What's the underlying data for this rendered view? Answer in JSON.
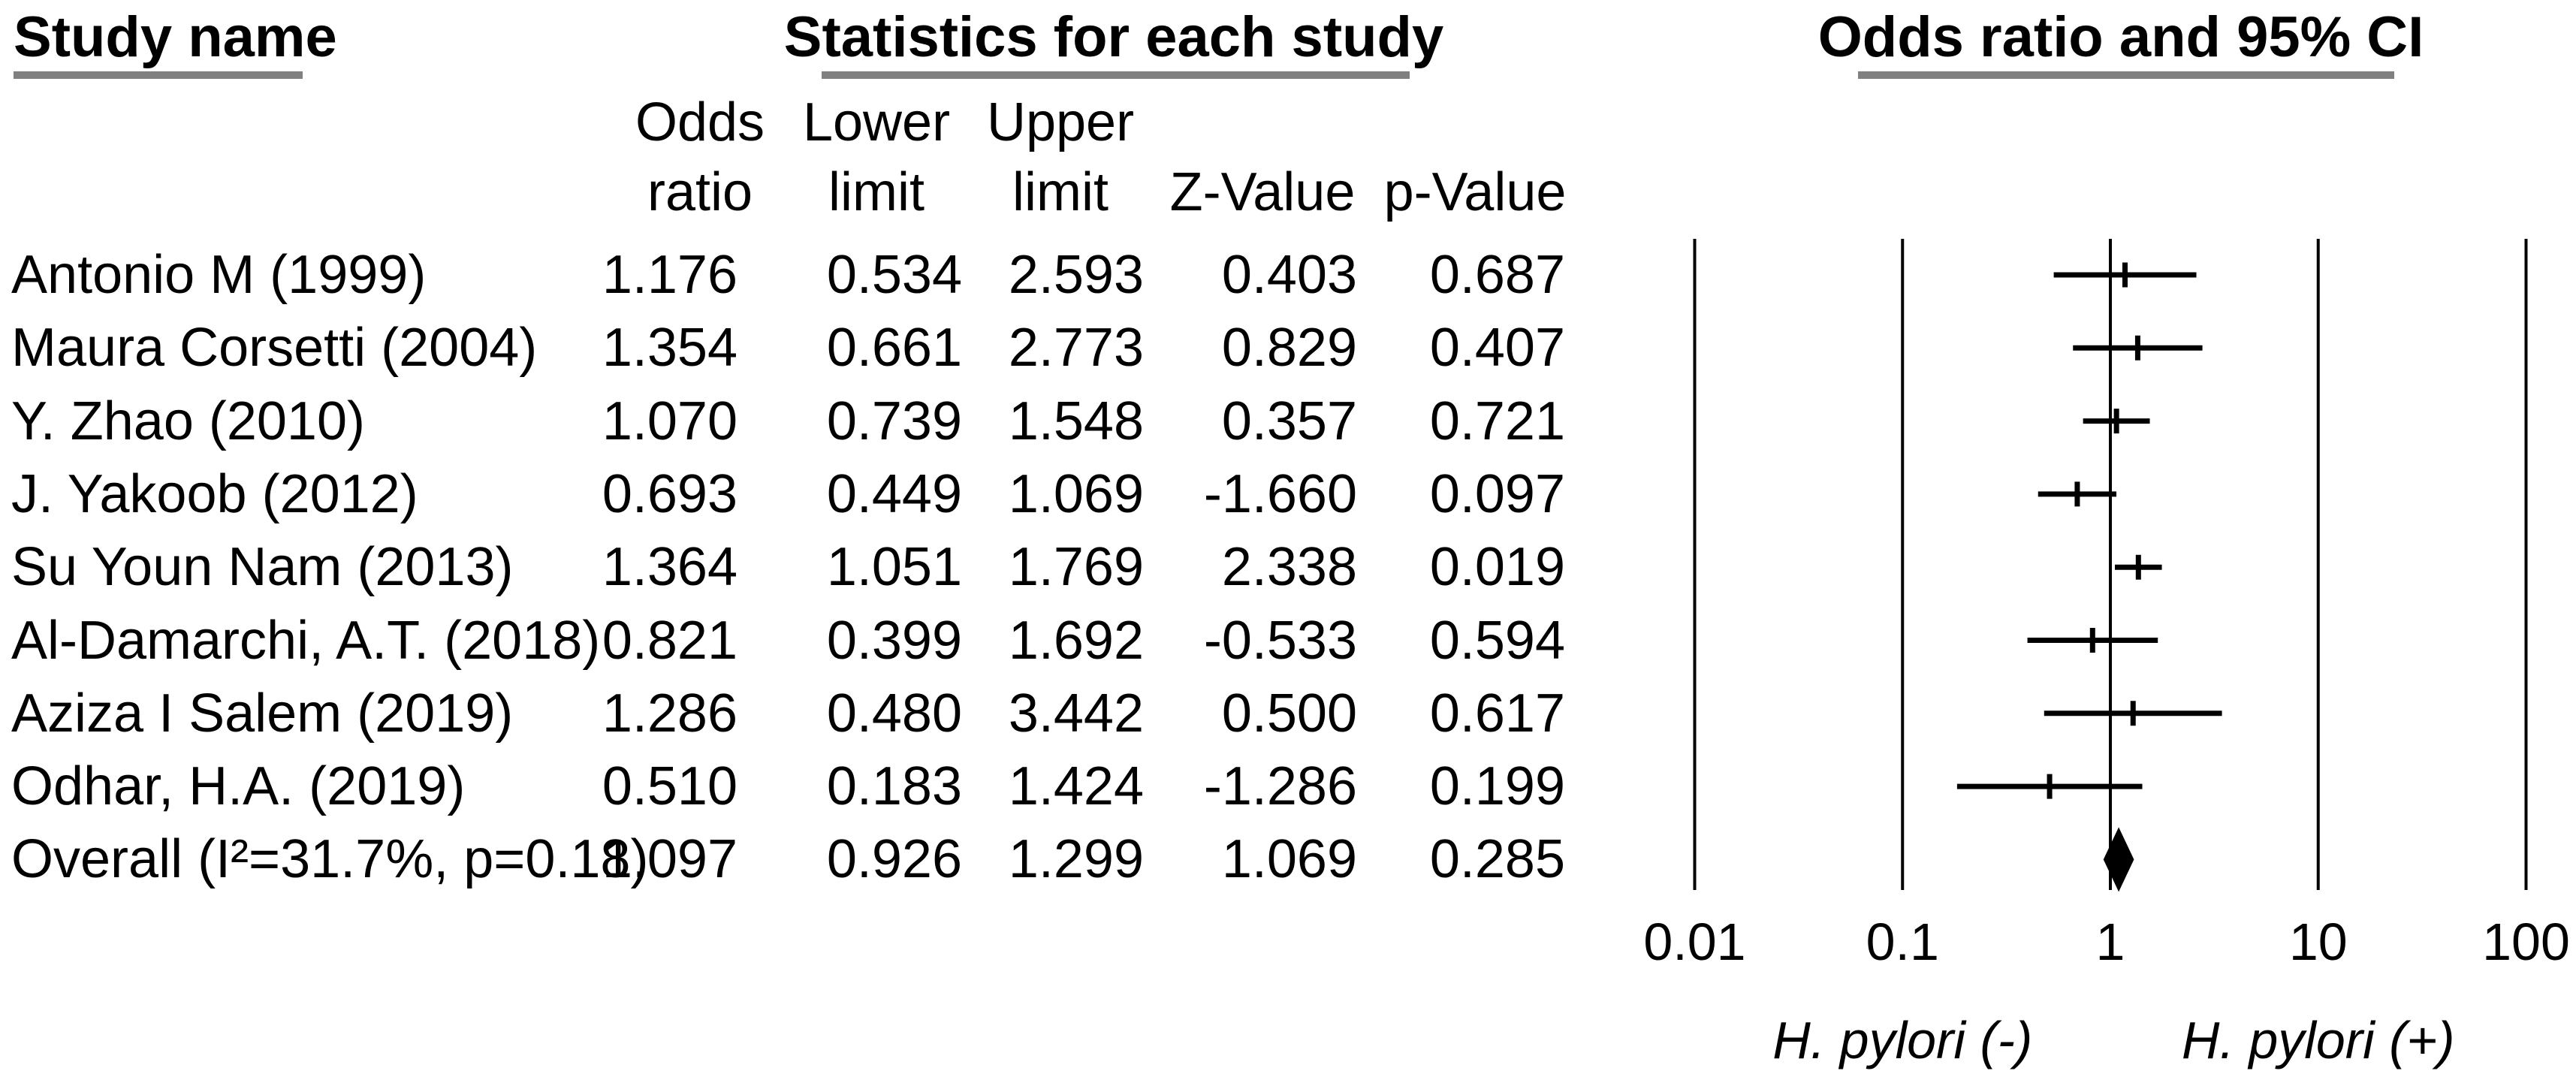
{
  "figure": {
    "study_col_header": "Study name",
    "stats_col_header": "Statistics for each study",
    "plot_col_header": "Odds ratio and 95% CI"
  },
  "table": {
    "column_lines": [
      [
        "Odds",
        "ratio"
      ],
      [
        "Lower",
        "limit"
      ],
      [
        "Upper",
        "limit"
      ],
      [
        "",
        "Z-Value"
      ],
      [
        "",
        "p-Value"
      ]
    ]
  },
  "chart_data": {
    "type": "forest",
    "title": "Odds ratio and 95% CI",
    "x_scale": "log10",
    "x_range": [
      0.01,
      100
    ],
    "x_ticks": [
      0.01,
      0.1,
      1,
      10,
      100
    ],
    "x_tick_labels": [
      "0.01",
      "0.1",
      "1",
      "10",
      "100"
    ],
    "grid": true,
    "marker_color": "#000000",
    "direction_labels": [
      {
        "text": "H. pylori (-)",
        "x": 0.1
      },
      {
        "text": "H. pylori (+)",
        "x": 10
      }
    ],
    "columns": [
      "Odds ratio",
      "Lower limit",
      "Upper limit",
      "Z-Value",
      "p-Value"
    ],
    "studies": [
      {
        "name": "Antonio M (1999)",
        "odds_ratio": 1.176,
        "lower": 0.534,
        "upper": 2.593,
        "z": 0.403,
        "p": 0.687,
        "overall": false
      },
      {
        "name": "Maura Corsetti (2004)",
        "odds_ratio": 1.354,
        "lower": 0.661,
        "upper": 2.773,
        "z": 0.829,
        "p": 0.407,
        "overall": false
      },
      {
        "name": "Y. Zhao (2010)",
        "odds_ratio": 1.07,
        "lower": 0.739,
        "upper": 1.548,
        "z": 0.357,
        "p": 0.721,
        "overall": false
      },
      {
        "name": "J. Yakoob (2012)",
        "odds_ratio": 0.693,
        "lower": 0.449,
        "upper": 1.069,
        "z": -1.66,
        "p": 0.097,
        "overall": false
      },
      {
        "name": "Su Youn Nam (2013)",
        "odds_ratio": 1.364,
        "lower": 1.051,
        "upper": 1.769,
        "z": 2.338,
        "p": 0.019,
        "overall": false
      },
      {
        "name": "Al-Damarchi, A.T. (2018)",
        "odds_ratio": 0.821,
        "lower": 0.399,
        "upper": 1.692,
        "z": -0.533,
        "p": 0.594,
        "overall": false
      },
      {
        "name": "Aziza I Salem (2019)",
        "odds_ratio": 1.286,
        "lower": 0.48,
        "upper": 3.442,
        "z": 0.5,
        "p": 0.617,
        "overall": false
      },
      {
        "name": "Odhar, H.A. (2019)",
        "odds_ratio": 0.51,
        "lower": 0.183,
        "upper": 1.424,
        "z": -1.286,
        "p": 0.199,
        "overall": false
      },
      {
        "name": "Overall (I²=31.7%, p=0.18)",
        "odds_ratio": 1.097,
        "lower": 0.926,
        "upper": 1.299,
        "z": 1.069,
        "p": 0.285,
        "overall": true
      }
    ]
  }
}
